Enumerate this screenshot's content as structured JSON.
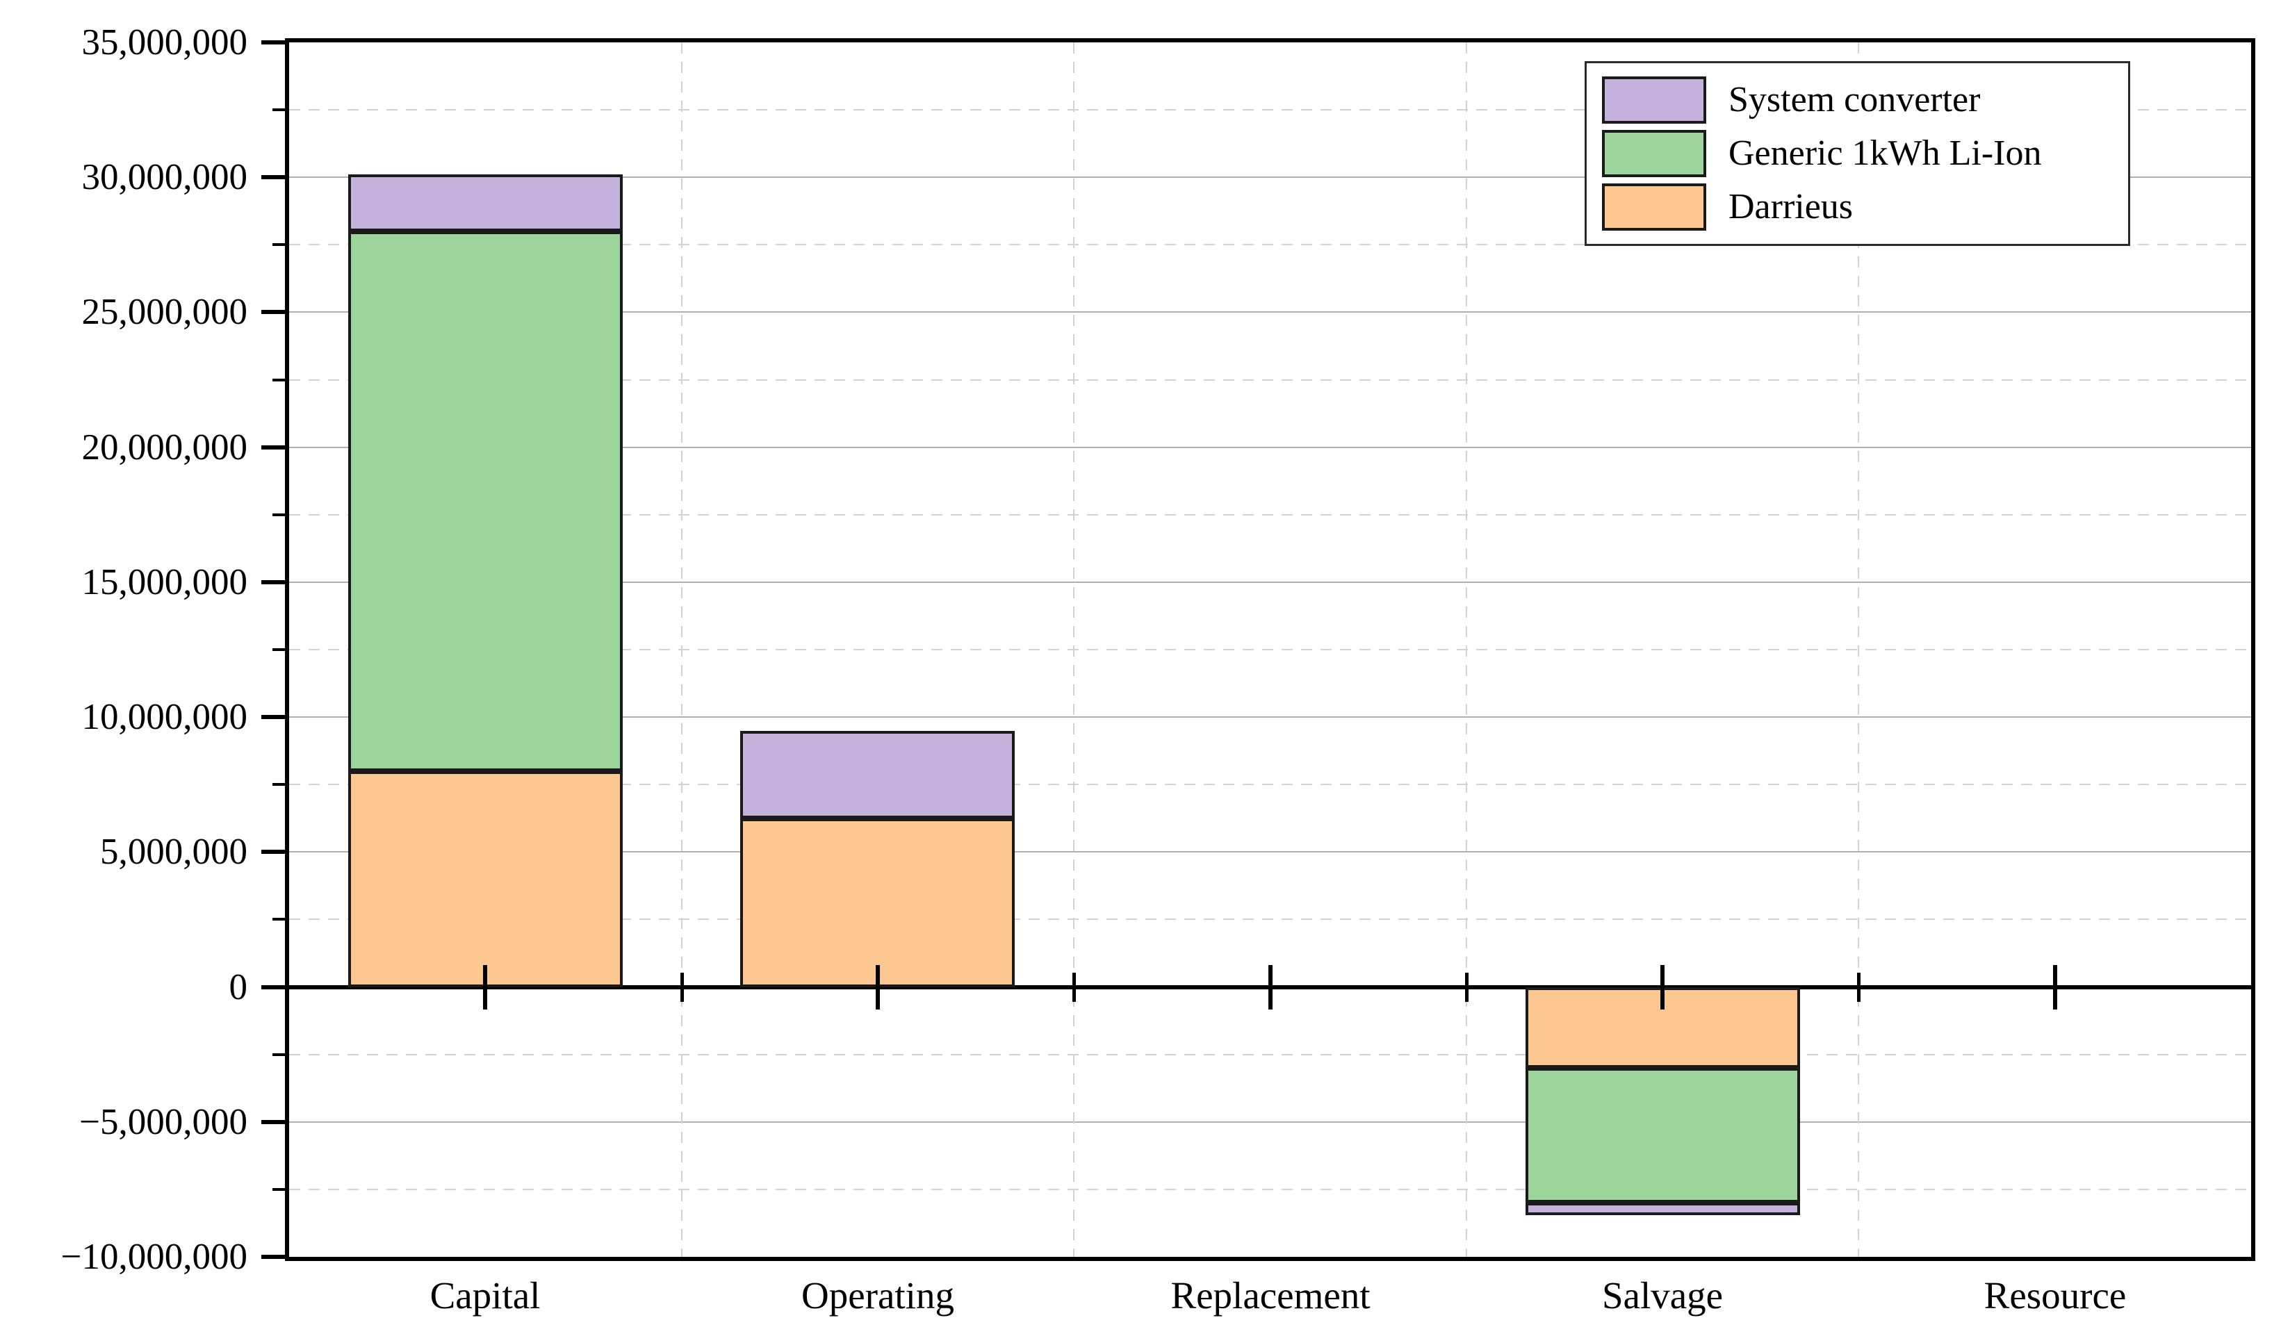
{
  "chart_data": {
    "type": "bar",
    "stacked": true,
    "title": "",
    "xlabel": "",
    "ylabel": "",
    "categories": [
      "Capital",
      "Operating",
      "Replacement",
      "Salvage",
      "Resource"
    ],
    "series": [
      {
        "name": "Darrieus",
        "color": "#fdc791",
        "values": [
          8000000,
          6250000,
          0,
          -3000000,
          0
        ]
      },
      {
        "name": "Generic 1kWh Li-Ion",
        "color": "#9cd49c",
        "values": [
          20000000,
          0,
          0,
          -5000000,
          0
        ]
      },
      {
        "name": "System converter",
        "color": "#c4b2dc",
        "values": [
          2100000,
          3250000,
          0,
          -450000,
          0
        ]
      }
    ],
    "category_totals": [
      30100000,
      9500000,
      0,
      -8450000,
      0
    ],
    "ylim": [
      -10000000,
      35000000
    ],
    "y_major_step": 5000000,
    "y_minor_step": 2500000,
    "y_tick_labels": [
      "35,000,000",
      "30,000,000",
      "25,000,000",
      "20,000,000",
      "15,000,000",
      "10,000,000",
      "5,000,000",
      "0",
      "−5,000,000",
      "−10,000,000"
    ],
    "grid": {
      "major": "solid",
      "minor": "dashed",
      "vertical": "dashed-at-category-boundaries"
    },
    "legend": {
      "position": "top-right",
      "entries": [
        {
          "label": "System converter",
          "color": "#c4b2dc"
        },
        {
          "label": "Generic 1kWh Li-Ion",
          "color": "#9cd49c"
        },
        {
          "label": "Darrieus",
          "color": "#fdc791"
        }
      ]
    },
    "colors": {
      "bar_border": "#1a1a1a",
      "axis": "#000000",
      "major_grid": "#b0b0b0",
      "minor_grid": "#d2d2d2",
      "background": "#ffffff"
    }
  }
}
